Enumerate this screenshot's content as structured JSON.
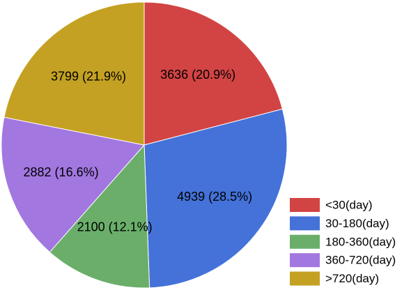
{
  "chart_data": {
    "type": "pie",
    "title": "",
    "start_angle_deg": 0,
    "direction": "clockwise",
    "legend_position": "bottom-right",
    "slices": [
      {
        "category": "<30(day)",
        "value": 3636,
        "label": "3636 (20.9%)",
        "color": "#D24444"
      },
      {
        "category": "30-180(day)",
        "value": 4939,
        "label": "4939 (28.5%)",
        "color": "#4472D9"
      },
      {
        "category": "180-360(day)",
        "value": 2100,
        "label": "2100 (12.1%)",
        "color": "#6AAE6A"
      },
      {
        "category": "360-720(day)",
        "value": 2882,
        "label": "2882 (16.6%)",
        "color": "#A277E0"
      },
      {
        "category": ">720(day)",
        "value": 3799,
        "label": "3799 (21.9%)",
        "color": "#C4A122"
      }
    ]
  }
}
